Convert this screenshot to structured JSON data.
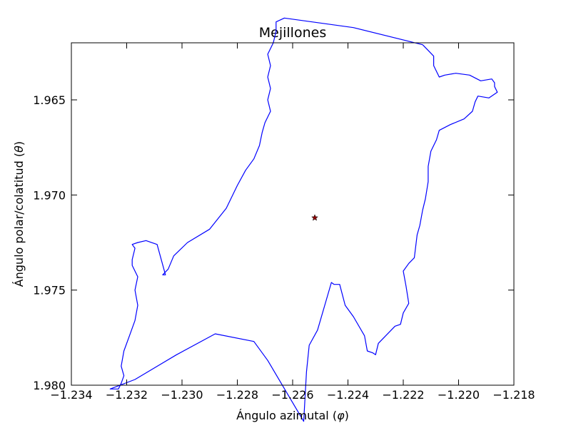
{
  "chart_data": {
    "type": "line",
    "title": "Mejillones",
    "xlabel": "Ángulo azimutal",
    "xlabel_symbol": "φ",
    "ylabel": "Ángulo polar/colatitud",
    "ylabel_symbol": "θ",
    "xlim": [
      -1.234,
      -1.218
    ],
    "ylim": [
      1.962,
      1.98
    ],
    "y_inverted": true,
    "grid": false,
    "xticks": [
      -1.234,
      -1.232,
      -1.23,
      -1.228,
      -1.226,
      -1.224,
      -1.222,
      -1.22,
      -1.218
    ],
    "xtick_labels": [
      "−1.234",
      "−1.232",
      "−1.230",
      "−1.228",
      "−1.226",
      "−1.224",
      "−1.222",
      "−1.220",
      "−1.218"
    ],
    "yticks": [
      1.965,
      1.97,
      1.975,
      1.98
    ],
    "ytick_labels": [
      "1.965",
      "1.970",
      "1.975",
      "1.980"
    ],
    "series": [
      {
        "kind": "boundary",
        "color": "#0000ff",
        "x": [
          -1.2213,
          -1.2211,
          -1.2209,
          -1.2209,
          -1.2208,
          -1.2207,
          -1.2205,
          -1.2201,
          -1.2196,
          -1.2192,
          -1.2188,
          -1.2187,
          -1.2187,
          -1.2186,
          -1.2189,
          -1.2193,
          -1.2194,
          -1.2195,
          -1.2198,
          -1.2203,
          -1.2207,
          -1.2208,
          -1.221,
          -1.2211,
          -1.2211,
          -1.2212,
          -1.2213,
          -1.2214,
          -1.2215,
          -1.2216,
          -1.2218,
          -1.222,
          -1.2219,
          -1.2218,
          -1.222,
          -1.2221,
          -1.2223,
          -1.2229,
          -1.223,
          -1.223,
          -1.2231,
          -1.2233,
          -1.2234,
          -1.2238,
          -1.2241,
          -1.2243,
          -1.2245,
          -1.2246,
          -1.2251,
          -1.2254,
          -1.2255,
          -1.2256,
          -1.2269,
          -1.2274,
          -1.2288,
          -1.2302,
          -1.2317,
          -1.2326,
          -1.2323,
          -1.2322,
          -1.2321,
          -1.2322,
          -1.2321,
          -1.2319,
          -1.2317,
          -1.2316,
          -1.2317,
          -1.2316,
          -1.2318,
          -1.2318,
          -1.2317,
          -1.2318,
          -1.2316,
          -1.2313,
          -1.2309,
          -1.2306,
          -1.2307,
          -1.2305,
          -1.2303,
          -1.2298,
          -1.229,
          -1.2284,
          -1.228,
          -1.2277,
          -1.2274,
          -1.2272,
          -1.2271,
          -1.227,
          -1.2268,
          -1.2269,
          -1.2268,
          -1.2269,
          -1.2268,
          -1.2269,
          -1.2267,
          -1.2266,
          -1.2266,
          -1.2263,
          -1.2238,
          -1.2213
        ],
        "y": [
          1.9621,
          1.9624,
          1.9627,
          1.9632,
          1.9635,
          1.9638,
          1.9637,
          1.9636,
          1.9637,
          1.964,
          1.9639,
          1.9641,
          1.9643,
          1.9646,
          1.9649,
          1.9648,
          1.9651,
          1.9656,
          1.966,
          1.9663,
          1.9666,
          1.9671,
          1.9677,
          1.9685,
          1.9693,
          1.9702,
          1.9708,
          1.9716,
          1.9721,
          1.9733,
          1.9736,
          1.974,
          1.9748,
          1.9757,
          1.9762,
          1.9768,
          1.9769,
          1.9778,
          1.9784,
          1.9784,
          1.9783,
          1.9782,
          1.9774,
          1.9764,
          1.9758,
          1.9747,
          1.9747,
          1.9746,
          1.9771,
          1.9779,
          1.9793,
          1.9819,
          1.9787,
          1.9777,
          1.9773,
          1.9784,
          1.9797,
          1.9802,
          1.9802,
          1.9799,
          1.9795,
          1.979,
          1.9782,
          1.9774,
          1.9766,
          1.9758,
          1.975,
          1.9743,
          1.9737,
          1.9734,
          1.9728,
          1.9726,
          1.9725,
          1.9724,
          1.9726,
          1.9742,
          1.9742,
          1.9739,
          1.9732,
          1.9725,
          1.9718,
          1.9707,
          1.9695,
          1.9687,
          1.9681,
          1.9674,
          1.9667,
          1.9662,
          1.9656,
          1.965,
          1.9644,
          1.9638,
          1.9632,
          1.9626,
          1.962,
          1.9614,
          1.9609,
          1.9607,
          1.9612,
          1.9621
        ]
      },
      {
        "kind": "marker",
        "symbol": "star",
        "color": "#8b0000",
        "x": [
          -1.2252
        ],
        "y": [
          1.9712
        ]
      }
    ]
  }
}
